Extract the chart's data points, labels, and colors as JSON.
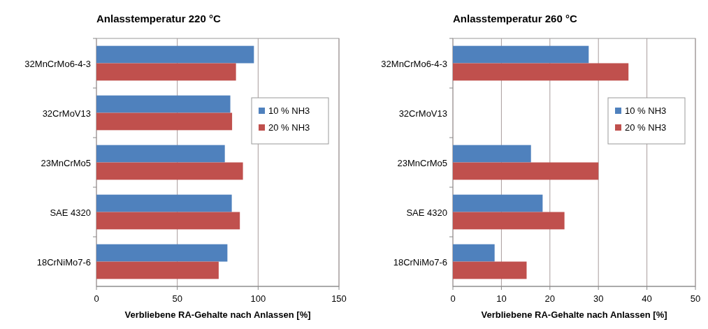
{
  "chart_data": [
    {
      "type": "bar",
      "orientation": "horizontal",
      "title": "Anlasstemperatur 220 °C",
      "xlabel": "Verbliebene RA-Gehalte nach Anlassen [%]",
      "categories": [
        "32MnCrMo6-4-3",
        "32CrMoV13",
        "23MnCrMo5",
        "SAE 4320",
        "18CrNiMo7-6"
      ],
      "series": [
        {
          "name": "10 % NH3",
          "color": "#4f81bd",
          "values": [
            97.4,
            82.8,
            79.4,
            83.7,
            81
          ]
        },
        {
          "name": "20 % NH3",
          "color": "#c0504d",
          "values": [
            86.3,
            83.9,
            90.6,
            88.7,
            75.6
          ]
        }
      ],
      "xlim": [
        0,
        150
      ],
      "xticks": [
        0,
        50,
        100,
        150
      ],
      "grid": "x",
      "legend": "right"
    },
    {
      "type": "bar",
      "orientation": "horizontal",
      "title": "Anlasstemperatur 260 °C",
      "xlabel": "Verbliebene RA-Gehalte nach Anlassen [%]",
      "categories": [
        "32MnCrMo6-4-3",
        "32CrMoV13",
        "23MnCrMo5",
        "SAE 4320",
        "18CrNiMo7-6"
      ],
      "series": [
        {
          "name": "10 % NH3",
          "color": "#4f81bd",
          "values": [
            28,
            null,
            16.1,
            18.5,
            8.6
          ]
        },
        {
          "name": "20 % NH3",
          "color": "#c0504d",
          "values": [
            36.2,
            null,
            30,
            23,
            15.2
          ]
        }
      ],
      "xlim": [
        0,
        50
      ],
      "xticks": [
        0,
        10,
        20,
        30,
        40,
        50
      ],
      "grid": "x",
      "legend": "right"
    }
  ]
}
